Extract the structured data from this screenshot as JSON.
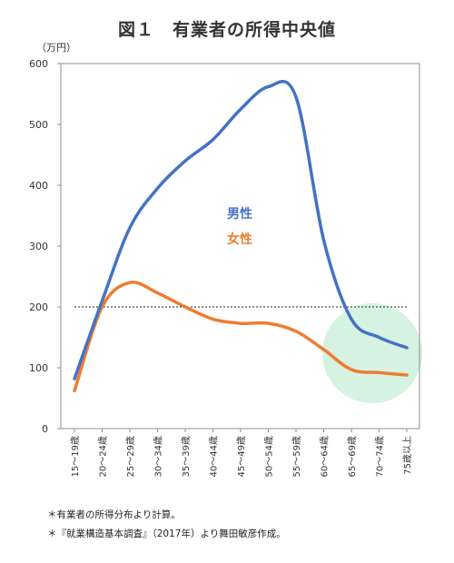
{
  "title": "図１　有業者の所得中央値",
  "chart_data": {
    "type": "line",
    "unit_label": "（万円）",
    "ylim": [
      0,
      600
    ],
    "yticks": [
      0,
      100,
      200,
      300,
      400,
      500,
      600
    ],
    "categories": [
      "15～19歳",
      "20～24歳",
      "25～29歳",
      "30～34歳",
      "35～39歳",
      "40～44歳",
      "45～49歳",
      "50～54歳",
      "55～59歳",
      "60～64歳",
      "65～69歳",
      "70～74歳",
      "75歳以上"
    ],
    "series": [
      {
        "name": "男性",
        "color": "#4472C4",
        "values": [
          82,
          210,
          330,
          395,
          440,
          475,
          525,
          562,
          545,
          310,
          180,
          150,
          133
        ]
      },
      {
        "name": "女性",
        "color": "#ED7D31",
        "values": [
          62,
          200,
          240,
          223,
          200,
          180,
          173,
          173,
          160,
          130,
          97,
          92,
          88
        ]
      }
    ],
    "reference_line": {
      "value": 200,
      "style": "dotted"
    },
    "highlight": {
      "color": "#CFF0DC"
    },
    "grid": false
  },
  "notes": [
    "＊有業者の所得分布より計算。",
    "＊『就業構造基本調査』（2017年）より舞田敏彦作成。"
  ]
}
